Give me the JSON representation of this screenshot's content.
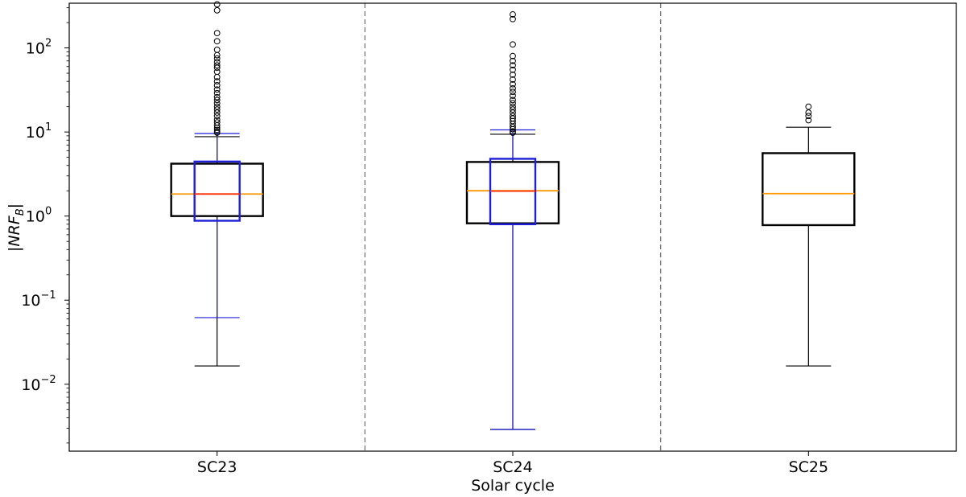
{
  "chart_data": {
    "type": "box",
    "xlabel": "Solar cycle",
    "ylabel_main": "|NRF",
    "ylabel_sub": "B",
    "ylabel_end": "|",
    "yscale": "log",
    "ylim": [
      0.0016,
      340
    ],
    "yticks": [
      {
        "value": 0.01,
        "base": "10",
        "exp": "−2"
      },
      {
        "value": 0.1,
        "base": "10",
        "exp": "−1"
      },
      {
        "value": 1,
        "base": "10",
        "exp": "0"
      },
      {
        "value": 10,
        "base": "10",
        "exp": "1"
      },
      {
        "value": 100,
        "base": "10",
        "exp": "2"
      }
    ],
    "categories": [
      "SC23",
      "SC24",
      "SC25"
    ],
    "separators": true,
    "colors": {
      "primary_box": "#000000",
      "secondary_box": "#1f1fd6",
      "median": "#ff9900",
      "secondary_median": "#ff2a00",
      "separator": "#777777"
    },
    "boxes": [
      {
        "category": "SC23",
        "primary": {
          "whisker_low": 0.0165,
          "q1": 1.0,
          "median": 1.83,
          "q3": 4.2,
          "whisker_high": 8.8
        },
        "secondary": {
          "whisker_low": 0.062,
          "q1": 0.88,
          "median": 1.83,
          "q3": 4.45,
          "whisker_high": 9.6
        },
        "outliers": [
          9.8,
          10.1,
          10.6,
          11.2,
          12.0,
          13.0,
          14.0,
          15.5,
          17.0,
          18.5,
          20.0,
          22.0,
          24.0,
          26.0,
          29.0,
          32.0,
          36.0,
          40.0,
          45.0,
          52.0,
          58.0,
          62.0,
          68.0,
          75.0,
          82.0,
          95.0,
          120.0,
          150.0,
          280.0,
          330.0
        ]
      },
      {
        "category": "SC24",
        "primary": {
          "whisker_low": 0.0029,
          "q1": 0.82,
          "median": 2.0,
          "q3": 4.4,
          "whisker_high": 9.4
        },
        "secondary": {
          "whisker_low": 0.0029,
          "q1": 0.8,
          "median": 1.98,
          "q3": 4.8,
          "whisker_high": 10.6
        },
        "outliers": [
          9.8,
          10.2,
          10.8,
          11.5,
          12.5,
          13.5,
          14.5,
          15.5,
          17.0,
          18.5,
          20.0,
          22.0,
          24.0,
          27.0,
          30.0,
          33.0,
          37.0,
          42.0,
          48.0,
          55.0,
          62.0,
          70.0,
          80.0,
          110.0,
          220.0,
          250.0
        ]
      },
      {
        "category": "SC25",
        "primary": {
          "whisker_low": 0.0165,
          "q1": 0.78,
          "median": 1.85,
          "q3": 5.6,
          "whisker_high": 11.4
        },
        "secondary": null,
        "outliers": [
          13.8,
          15.5,
          17.0,
          20.0
        ]
      }
    ]
  }
}
